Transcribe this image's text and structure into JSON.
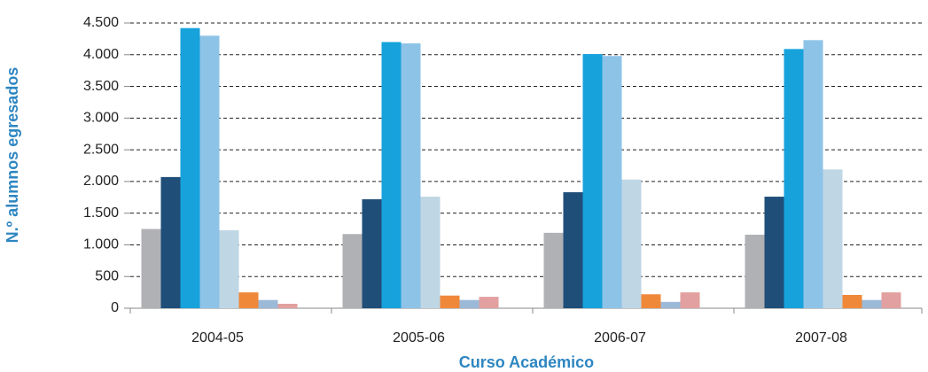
{
  "chart_data": {
    "type": "bar",
    "xlabel": "Curso Académico",
    "ylabel": "N.º alumnos egresados",
    "categories": [
      "2004-05",
      "2005-06",
      "2006-07",
      "2007-08"
    ],
    "series": [
      {
        "color": "#b0b1b5",
        "values": [
          1250,
          1170,
          1190,
          1160
        ]
      },
      {
        "color": "#1f4e79",
        "values": [
          2070,
          1720,
          1830,
          1760
        ]
      },
      {
        "color": "#17a2dc",
        "values": [
          4420,
          4200,
          4010,
          4090
        ]
      },
      {
        "color": "#8ec3e8",
        "values": [
          4300,
          4180,
          3980,
          4230
        ]
      },
      {
        "color": "#bfd6e4",
        "values": [
          1230,
          1760,
          2030,
          2190
        ]
      },
      {
        "color": "#f0883a",
        "values": [
          250,
          200,
          220,
          210
        ]
      },
      {
        "color": "#9db9d8",
        "values": [
          130,
          130,
          100,
          130
        ]
      },
      {
        "color": "#e2a0a0",
        "values": [
          70,
          180,
          250,
          250
        ]
      }
    ],
    "ylim": [
      0,
      4500
    ],
    "yticks": [
      0,
      500,
      {
        "value": 1000,
        "label": "1.000"
      },
      {
        "value": 1500,
        "label": "1.500"
      },
      {
        "value": 2000,
        "label": "2.000"
      },
      {
        "value": 2500,
        "label": "2.500"
      },
      {
        "value": 3000,
        "label": "3.000"
      },
      {
        "value": 3500,
        "label": "3.500"
      },
      {
        "value": 4000,
        "label": "4.000"
      },
      {
        "value": 4500,
        "label": "4.500"
      }
    ],
    "grid": true
  }
}
